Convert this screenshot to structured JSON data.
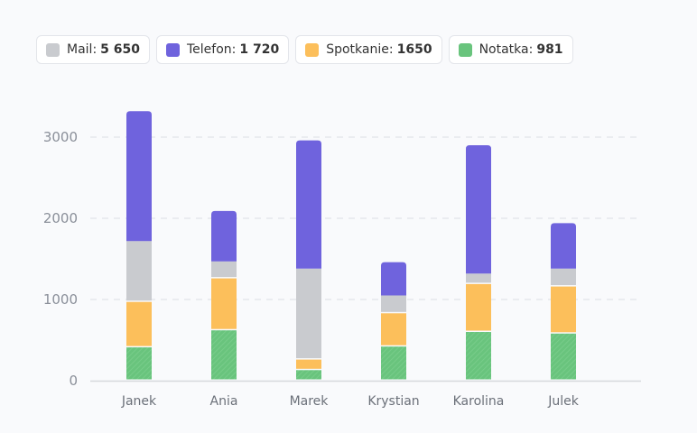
{
  "legend": [
    {
      "label": "Mail:",
      "value": "5 650",
      "color": "#c9cbcf"
    },
    {
      "label": "Telefon:",
      "value": "1 720",
      "color": "#6f63dd"
    },
    {
      "label": "Spotkanie:",
      "value": "1650",
      "color": "#fcbf5b"
    },
    {
      "label": "Notatka:",
      "value": "981",
      "color": "#69c47d"
    }
  ],
  "chart_data": {
    "type": "bar",
    "stacked": true,
    "categories": [
      "Janek",
      "Ania",
      "Marek",
      "Krystian",
      "Karolina",
      "Julek"
    ],
    "series": [
      {
        "name": "Notatka",
        "color": "#69c47d",
        "values": [
          410,
          620,
          130,
          420,
          600,
          580
        ]
      },
      {
        "name": "Spotkanie",
        "color": "#fcbf5b",
        "values": [
          560,
          640,
          130,
          410,
          590,
          580
        ]
      },
      {
        "name": "Mail",
        "color": "#c9cbcf",
        "values": [
          750,
          210,
          1120,
          220,
          130,
          220
        ]
      },
      {
        "name": "Telefon",
        "color": "#6f63dd",
        "values": [
          1600,
          620,
          1580,
          410,
          1580,
          560
        ]
      }
    ],
    "ylim": [
      0,
      3000
    ],
    "yticks": [
      "0",
      "1000",
      "2000",
      "3000"
    ],
    "grid": true,
    "legend_position": "top-left"
  }
}
